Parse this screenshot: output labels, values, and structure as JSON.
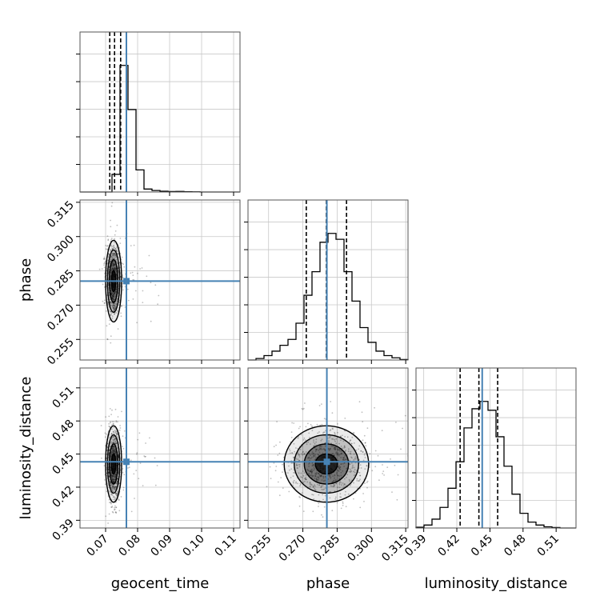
{
  "chart_data": {
    "type": "corner",
    "parameters": [
      {
        "name": "geocent_time",
        "label": "geocent_time",
        "range": [
          0.062,
          0.112
        ],
        "ticks": [
          "0.07",
          "0.08",
          "0.09",
          "0.10",
          "0.11"
        ],
        "tick_values": [
          0.07,
          0.08,
          0.09,
          0.1,
          0.11
        ],
        "truth": 0.0765,
        "quantiles": [
          0.0713,
          0.0728,
          0.0747
        ]
      },
      {
        "name": "phase",
        "label": "phase",
        "range": [
          0.246,
          0.316
        ],
        "ticks": [
          "0.255",
          "0.270",
          "0.285",
          "0.300",
          "0.315"
        ],
        "tick_values": [
          0.255,
          0.27,
          0.285,
          0.3,
          0.315
        ],
        "truth": 0.2805,
        "quantiles": [
          0.2715,
          0.2803,
          0.2891
        ]
      },
      {
        "name": "luminosity_distance",
        "label": "luminosity_distance",
        "range": [
          0.383,
          0.528
        ],
        "ticks": [
          "0.39",
          "0.42",
          "0.45",
          "0.48",
          "0.51"
        ],
        "tick_values": [
          0.39,
          0.42,
          0.45,
          0.48,
          0.51
        ],
        "truth": 0.443,
        "quantiles": [
          0.423,
          0.44,
          0.457
        ]
      }
    ],
    "histograms": [
      {
        "param": "geocent_time",
        "bins": [
          0.062,
          0.112
        ],
        "counts": [
          0,
          0,
          0,
          0,
          0.12,
          0.86,
          0.56,
          0.15,
          0.02,
          0.01,
          0.005,
          0.003,
          0.004,
          0.002,
          0.001,
          0,
          0,
          0,
          0,
          0
        ]
      },
      {
        "param": "phase",
        "bins": [
          0.246,
          0.316
        ],
        "counts": [
          0,
          0.01,
          0.03,
          0.06,
          0.1,
          0.14,
          0.25,
          0.44,
          0.6,
          0.8,
          0.86,
          0.82,
          0.6,
          0.4,
          0.22,
          0.12,
          0.06,
          0.03,
          0.015,
          0.003
        ]
      },
      {
        "param": "luminosity_distance",
        "bins": [
          0.383,
          0.528
        ],
        "counts": [
          0.005,
          0.02,
          0.06,
          0.14,
          0.27,
          0.45,
          0.68,
          0.81,
          0.86,
          0.8,
          0.62,
          0.42,
          0.23,
          0.1,
          0.04,
          0.02,
          0.008,
          0.003,
          0,
          0
        ]
      }
    ],
    "joint": [
      {
        "x": "geocent_time",
        "y": "phase",
        "center": [
          0.0725,
          0.2805
        ],
        "sd": [
          0.0012,
          0.0085
        ]
      },
      {
        "x": "geocent_time",
        "y": "luminosity_distance",
        "center": [
          0.0725,
          0.441
        ],
        "sd": [
          0.0012,
          0.0165
        ]
      },
      {
        "x": "phase",
        "y": "luminosity_distance",
        "center": [
          0.2803,
          0.441
        ],
        "sd": [
          0.0088,
          0.0165
        ]
      }
    ],
    "colors": {
      "truth": "#4682b4",
      "hist": "#000000",
      "grid": "#c8c8c8"
    },
    "grid": true
  }
}
